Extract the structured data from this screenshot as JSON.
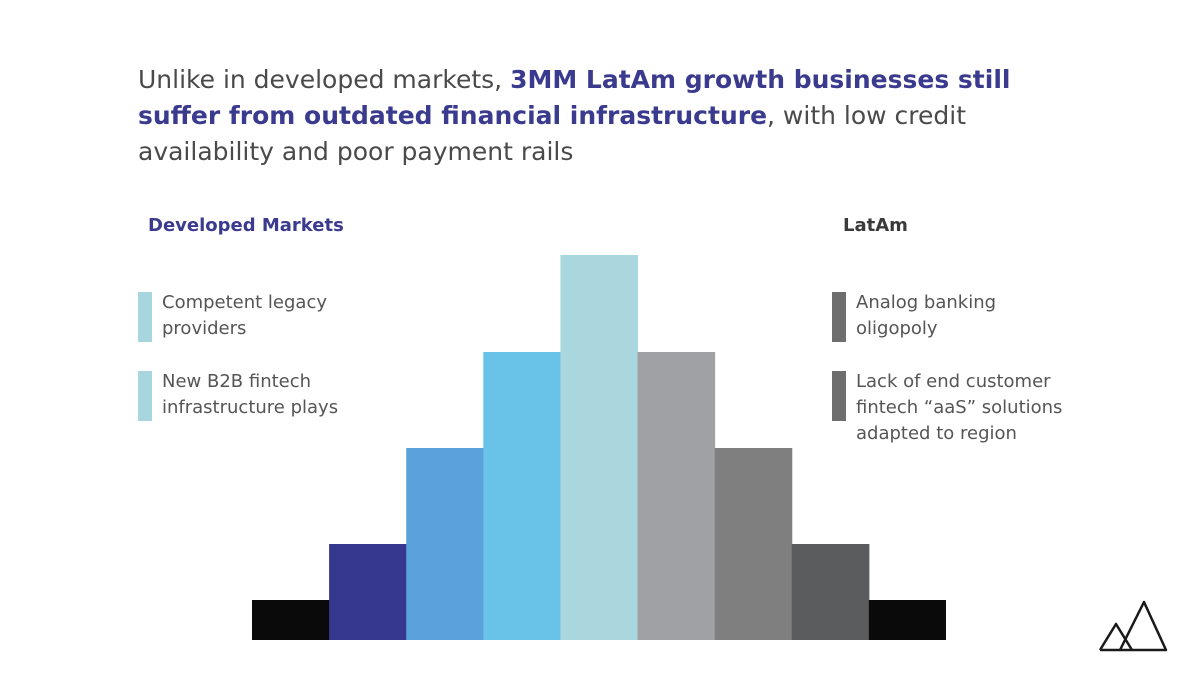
{
  "headline": {
    "part1": "Unlike in developed markets, ",
    "emphasis": "3MM LatAm growth businesses still suffer from outdated financial infrastructure",
    "part2": ", with low credit availability and poor payment rails"
  },
  "left_column": {
    "title": "Developed Markets",
    "items": [
      {
        "label": "Competent legacy\nproviders",
        "color": "#a8d6de"
      },
      {
        "label": "New B2B fintech\ninfrastructure plays",
        "color": "#a8d6de"
      }
    ]
  },
  "right_column": {
    "title": "LatAm",
    "items": [
      {
        "label": "Analog banking\noligopoly",
        "color": "#6e6e6e"
      },
      {
        "label": "Lack of end customer\nfintech “aaS” solutions\nadapted to region",
        "color": "#6e6e6e"
      }
    ]
  },
  "pyramid": {
    "levels": [
      1,
      2,
      3,
      4,
      5,
      4,
      3,
      2,
      1
    ],
    "max_level": 5,
    "colors": [
      "#0a0a0a",
      "#363890",
      "#5aa2d9",
      "#69c3e8",
      "#aad6dd",
      "#a0a1a5",
      "#7f7f7f",
      "#5b5c5e",
      "#0a0a0a"
    ]
  },
  "logo": {
    "icon": "mountain-logo-icon",
    "color": "#1a1a1a"
  }
}
